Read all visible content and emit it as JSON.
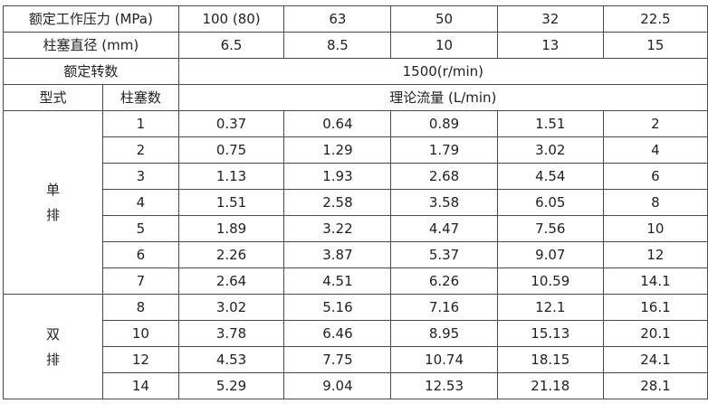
{
  "table": {
    "header_rows": [
      {
        "label": "额定工作压力 (MPa)",
        "values": [
          "100 (80)",
          "63",
          "50",
          "32",
          "22.5"
        ]
      },
      {
        "label": "柱塞直径 (mm)",
        "values": [
          "6.5",
          "8.5",
          "10",
          "13",
          "15"
        ]
      }
    ],
    "speed_row": {
      "label": "额定转数",
      "value": "1500(r/min)"
    },
    "column_header": {
      "type": "型式",
      "count": "柱塞数",
      "flow": "理论流量 (L/min)"
    },
    "groups": [
      {
        "type_label": [
          "单",
          "排"
        ],
        "rows": [
          {
            "n": "1",
            "values": [
              "0.37",
              "0.64",
              "0.89",
              "1.51",
              "2"
            ]
          },
          {
            "n": "2",
            "values": [
              "0.75",
              "1.29",
              "1.79",
              "3.02",
              "4"
            ]
          },
          {
            "n": "3",
            "values": [
              "1.13",
              "1.93",
              "2.68",
              "4.54",
              "6"
            ]
          },
          {
            "n": "4",
            "values": [
              "1.51",
              "2.58",
              "3.58",
              "6.05",
              "8"
            ]
          },
          {
            "n": "5",
            "values": [
              "1.89",
              "3.22",
              "4.47",
              "7.56",
              "10"
            ]
          },
          {
            "n": "6",
            "values": [
              "2.26",
              "3.87",
              "5.37",
              "9.07",
              "12"
            ]
          },
          {
            "n": "7",
            "values": [
              "2.64",
              "4.51",
              "6.26",
              "10.59",
              "14.1"
            ]
          }
        ]
      },
      {
        "type_label": [
          "双",
          "排"
        ],
        "rows": [
          {
            "n": "8",
            "values": [
              "3.02",
              "5.16",
              "7.16",
              "12.1",
              "16.1"
            ]
          },
          {
            "n": "10",
            "values": [
              "3.78",
              "6.46",
              "8.95",
              "15.13",
              "20.1"
            ]
          },
          {
            "n": "12",
            "values": [
              "4.53",
              "7.75",
              "10.74",
              "18.15",
              "24.1"
            ]
          },
          {
            "n": "14",
            "values": [
              "5.29",
              "9.04",
              "12.53",
              "21.18",
              "28.1"
            ]
          }
        ]
      }
    ]
  }
}
